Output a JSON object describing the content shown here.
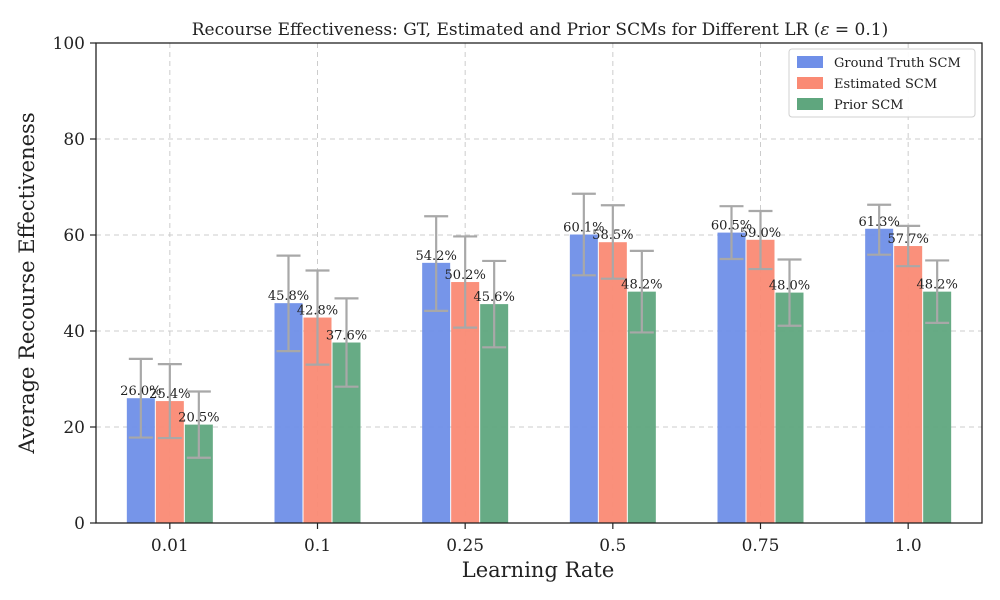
{
  "chart_data": {
    "type": "bar",
    "title": "Recourse Effectiveness: GT, Estimated and Prior SCMs for Different LR (",
    "title_symbol": "ε",
    "title_suffix": " = 0.1)",
    "xlabel": "Learning Rate",
    "ylabel": "Average Recourse Effectiveness",
    "ylim": [
      0,
      100
    ],
    "yticks": [
      0,
      20,
      40,
      60,
      80,
      100
    ],
    "categories": [
      "0.01",
      "0.1",
      "0.25",
      "0.5",
      "0.75",
      "1.0"
    ],
    "grid": true,
    "legend_position": "top-right",
    "series": [
      {
        "name": "Ground Truth SCM",
        "color": "#6f8fe8",
        "values": [
          26.0,
          45.8,
          54.2,
          60.1,
          60.5,
          61.3
        ],
        "labels": [
          "26.0%",
          "45.8%",
          "54.2%",
          "60.1%",
          "60.5%",
          "61.3%"
        ],
        "err_low": [
          17.8,
          35.8,
          44.2,
          51.6,
          55.0,
          55.9
        ],
        "err_high": [
          34.2,
          55.7,
          63.9,
          68.6,
          66.0,
          66.3
        ]
      },
      {
        "name": "Estimated SCM",
        "color": "#fa8a74",
        "values": [
          25.4,
          42.8,
          50.2,
          58.5,
          59.0,
          57.7
        ],
        "labels": [
          "25.4%",
          "42.8%",
          "50.2%",
          "58.5%",
          "59.0%",
          "57.7%"
        ],
        "err_low": [
          17.7,
          33.0,
          40.7,
          50.9,
          52.9,
          53.5
        ],
        "err_high": [
          33.1,
          52.6,
          59.7,
          66.2,
          65.0,
          61.9
        ]
      },
      {
        "name": "Prior SCM",
        "color": "#5fa67e",
        "values": [
          20.5,
          37.6,
          45.6,
          48.2,
          48.0,
          48.2
        ],
        "labels": [
          "20.5%",
          "37.6%",
          "45.6%",
          "48.2%",
          "48.0%",
          "48.2%"
        ],
        "err_low": [
          13.6,
          28.4,
          36.6,
          39.7,
          41.1,
          41.7
        ],
        "err_high": [
          27.4,
          46.8,
          54.6,
          56.7,
          54.9,
          54.7
        ]
      }
    ]
  }
}
